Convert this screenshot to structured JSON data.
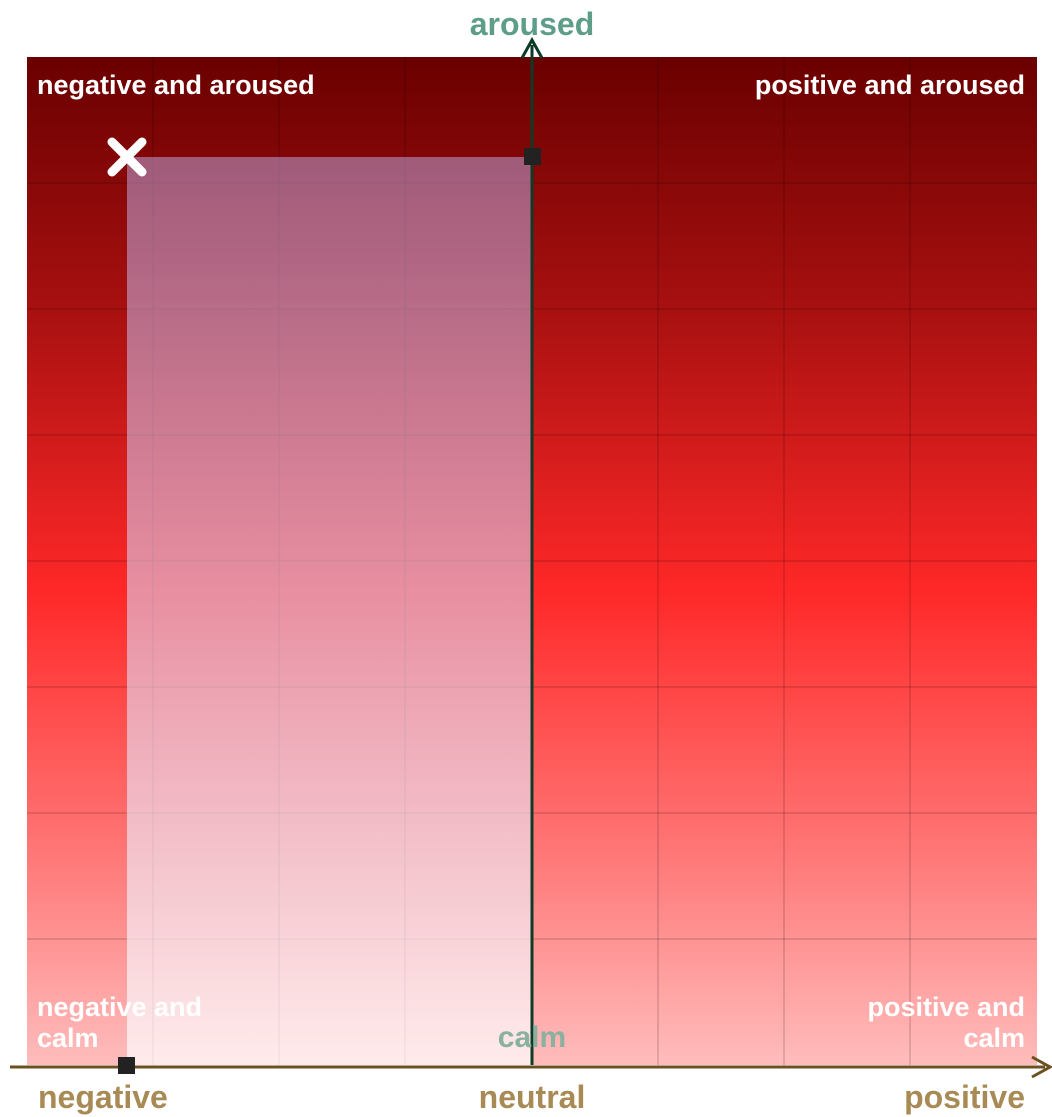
{
  "axes": {
    "top": "aroused",
    "bottom": "calm",
    "left": "negative",
    "center": "neutral",
    "right": "positive"
  },
  "quadrants": {
    "top_left": "negative and aroused",
    "top_right": "positive and aroused",
    "bottom_left": "negative and calm",
    "bottom_right": "positive and calm"
  }
}
